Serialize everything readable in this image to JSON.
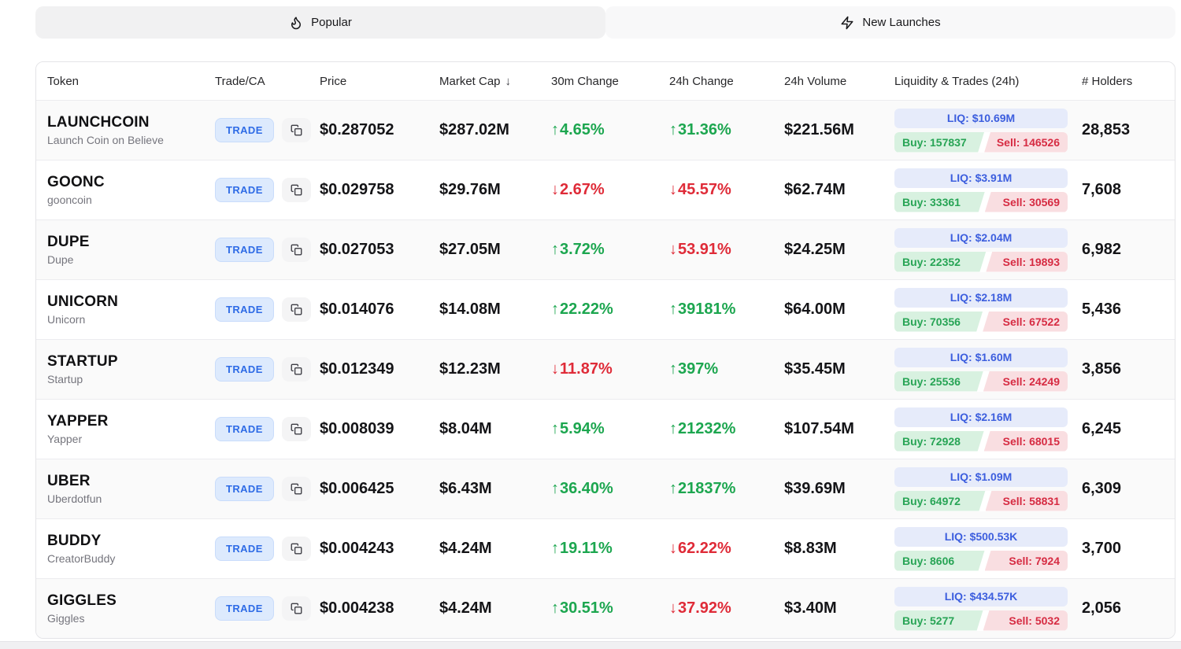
{
  "tabs": [
    {
      "label": "Popular",
      "icon": "flame-icon",
      "active": true
    },
    {
      "label": "New Launches",
      "icon": "lightning-icon",
      "active": false
    }
  ],
  "table": {
    "columns": [
      "Token",
      "Trade/CA",
      "Price",
      "Market Cap",
      "30m Change",
      "24h Change",
      "24h Volume",
      "Liquidity & Trades (24h)",
      "# Holders"
    ],
    "sort_column": "Market Cap",
    "sort_indicator": "↓",
    "trade_button_label": "TRADE",
    "buy_prefix": "Buy: ",
    "sell_prefix": "Sell: ",
    "rows": [
      {
        "symbol": "LAUNCHCOIN",
        "name": "Launch Coin on Believe",
        "price": "$0.287052",
        "market_cap": "$287.02M",
        "change_30m": {
          "direction": "up",
          "value": "4.65%"
        },
        "change_24h": {
          "direction": "up",
          "value": "31.36%"
        },
        "volume_24h": "$221.56M",
        "liquidity": "LIQ: $10.69M",
        "buys": 157837,
        "sells": 146526,
        "holders": "28,853"
      },
      {
        "symbol": "GOONC",
        "name": "gooncoin",
        "price": "$0.029758",
        "market_cap": "$29.76M",
        "change_30m": {
          "direction": "down",
          "value": "2.67%"
        },
        "change_24h": {
          "direction": "down",
          "value": "45.57%"
        },
        "volume_24h": "$62.74M",
        "liquidity": "LIQ: $3.91M",
        "buys": 33361,
        "sells": 30569,
        "holders": "7,608"
      },
      {
        "symbol": "DUPE",
        "name": "Dupe",
        "price": "$0.027053",
        "market_cap": "$27.05M",
        "change_30m": {
          "direction": "up",
          "value": "3.72%"
        },
        "change_24h": {
          "direction": "down",
          "value": "53.91%"
        },
        "volume_24h": "$24.25M",
        "liquidity": "LIQ: $2.04M",
        "buys": 22352,
        "sells": 19893,
        "holders": "6,982"
      },
      {
        "symbol": "UNICORN",
        "name": "Unicorn",
        "price": "$0.014076",
        "market_cap": "$14.08M",
        "change_30m": {
          "direction": "up",
          "value": "22.22%"
        },
        "change_24h": {
          "direction": "up",
          "value": "39181%"
        },
        "volume_24h": "$64.00M",
        "liquidity": "LIQ: $2.18M",
        "buys": 70356,
        "sells": 67522,
        "holders": "5,436"
      },
      {
        "symbol": "STARTUP",
        "name": "Startup",
        "price": "$0.012349",
        "market_cap": "$12.23M",
        "change_30m": {
          "direction": "down",
          "value": "11.87%"
        },
        "change_24h": {
          "direction": "up",
          "value": "397%"
        },
        "volume_24h": "$35.45M",
        "liquidity": "LIQ: $1.60M",
        "buys": 25536,
        "sells": 24249,
        "holders": "3,856"
      },
      {
        "symbol": "YAPPER",
        "name": "Yapper",
        "price": "$0.008039",
        "market_cap": "$8.04M",
        "change_30m": {
          "direction": "up",
          "value": "5.94%"
        },
        "change_24h": {
          "direction": "up",
          "value": "21232%"
        },
        "volume_24h": "$107.54M",
        "liquidity": "LIQ: $2.16M",
        "buys": 72928,
        "sells": 68015,
        "holders": "6,245"
      },
      {
        "symbol": "UBER",
        "name": "Uberdotfun",
        "price": "$0.006425",
        "market_cap": "$6.43M",
        "change_30m": {
          "direction": "up",
          "value": "36.40%"
        },
        "change_24h": {
          "direction": "up",
          "value": "21837%"
        },
        "volume_24h": "$39.69M",
        "liquidity": "LIQ: $1.09M",
        "buys": 64972,
        "sells": 58831,
        "holders": "6,309"
      },
      {
        "symbol": "BUDDY",
        "name": "CreatorBuddy",
        "price": "$0.004243",
        "market_cap": "$4.24M",
        "change_30m": {
          "direction": "up",
          "value": "19.11%"
        },
        "change_24h": {
          "direction": "down",
          "value": "62.22%"
        },
        "volume_24h": "$8.83M",
        "liquidity": "LIQ: $500.53K",
        "buys": 8606,
        "sells": 7924,
        "holders": "3,700"
      },
      {
        "symbol": "GIGGLES",
        "name": "Giggles",
        "price": "$0.004238",
        "market_cap": "$4.24M",
        "change_30m": {
          "direction": "up",
          "value": "30.51%"
        },
        "change_24h": {
          "direction": "down",
          "value": "37.92%"
        },
        "volume_24h": "$3.40M",
        "liquidity": "LIQ: $434.57K",
        "buys": 5277,
        "sells": 5032,
        "holders": "2,056"
      }
    ]
  },
  "colors": {
    "up_green": "#1ca64f",
    "down_red": "#df2b38",
    "buy_bg": "#d8f1e0",
    "buy_text": "#27a455",
    "sell_bg": "#f9dee1",
    "sell_text": "#d62b42",
    "liq_bg": "#e6ebfa",
    "liq_text": "#3c5ede",
    "trade_bg": "#ddeafd",
    "trade_text": "#2e6be6",
    "tab_active_bg": "#f1f1f2"
  }
}
